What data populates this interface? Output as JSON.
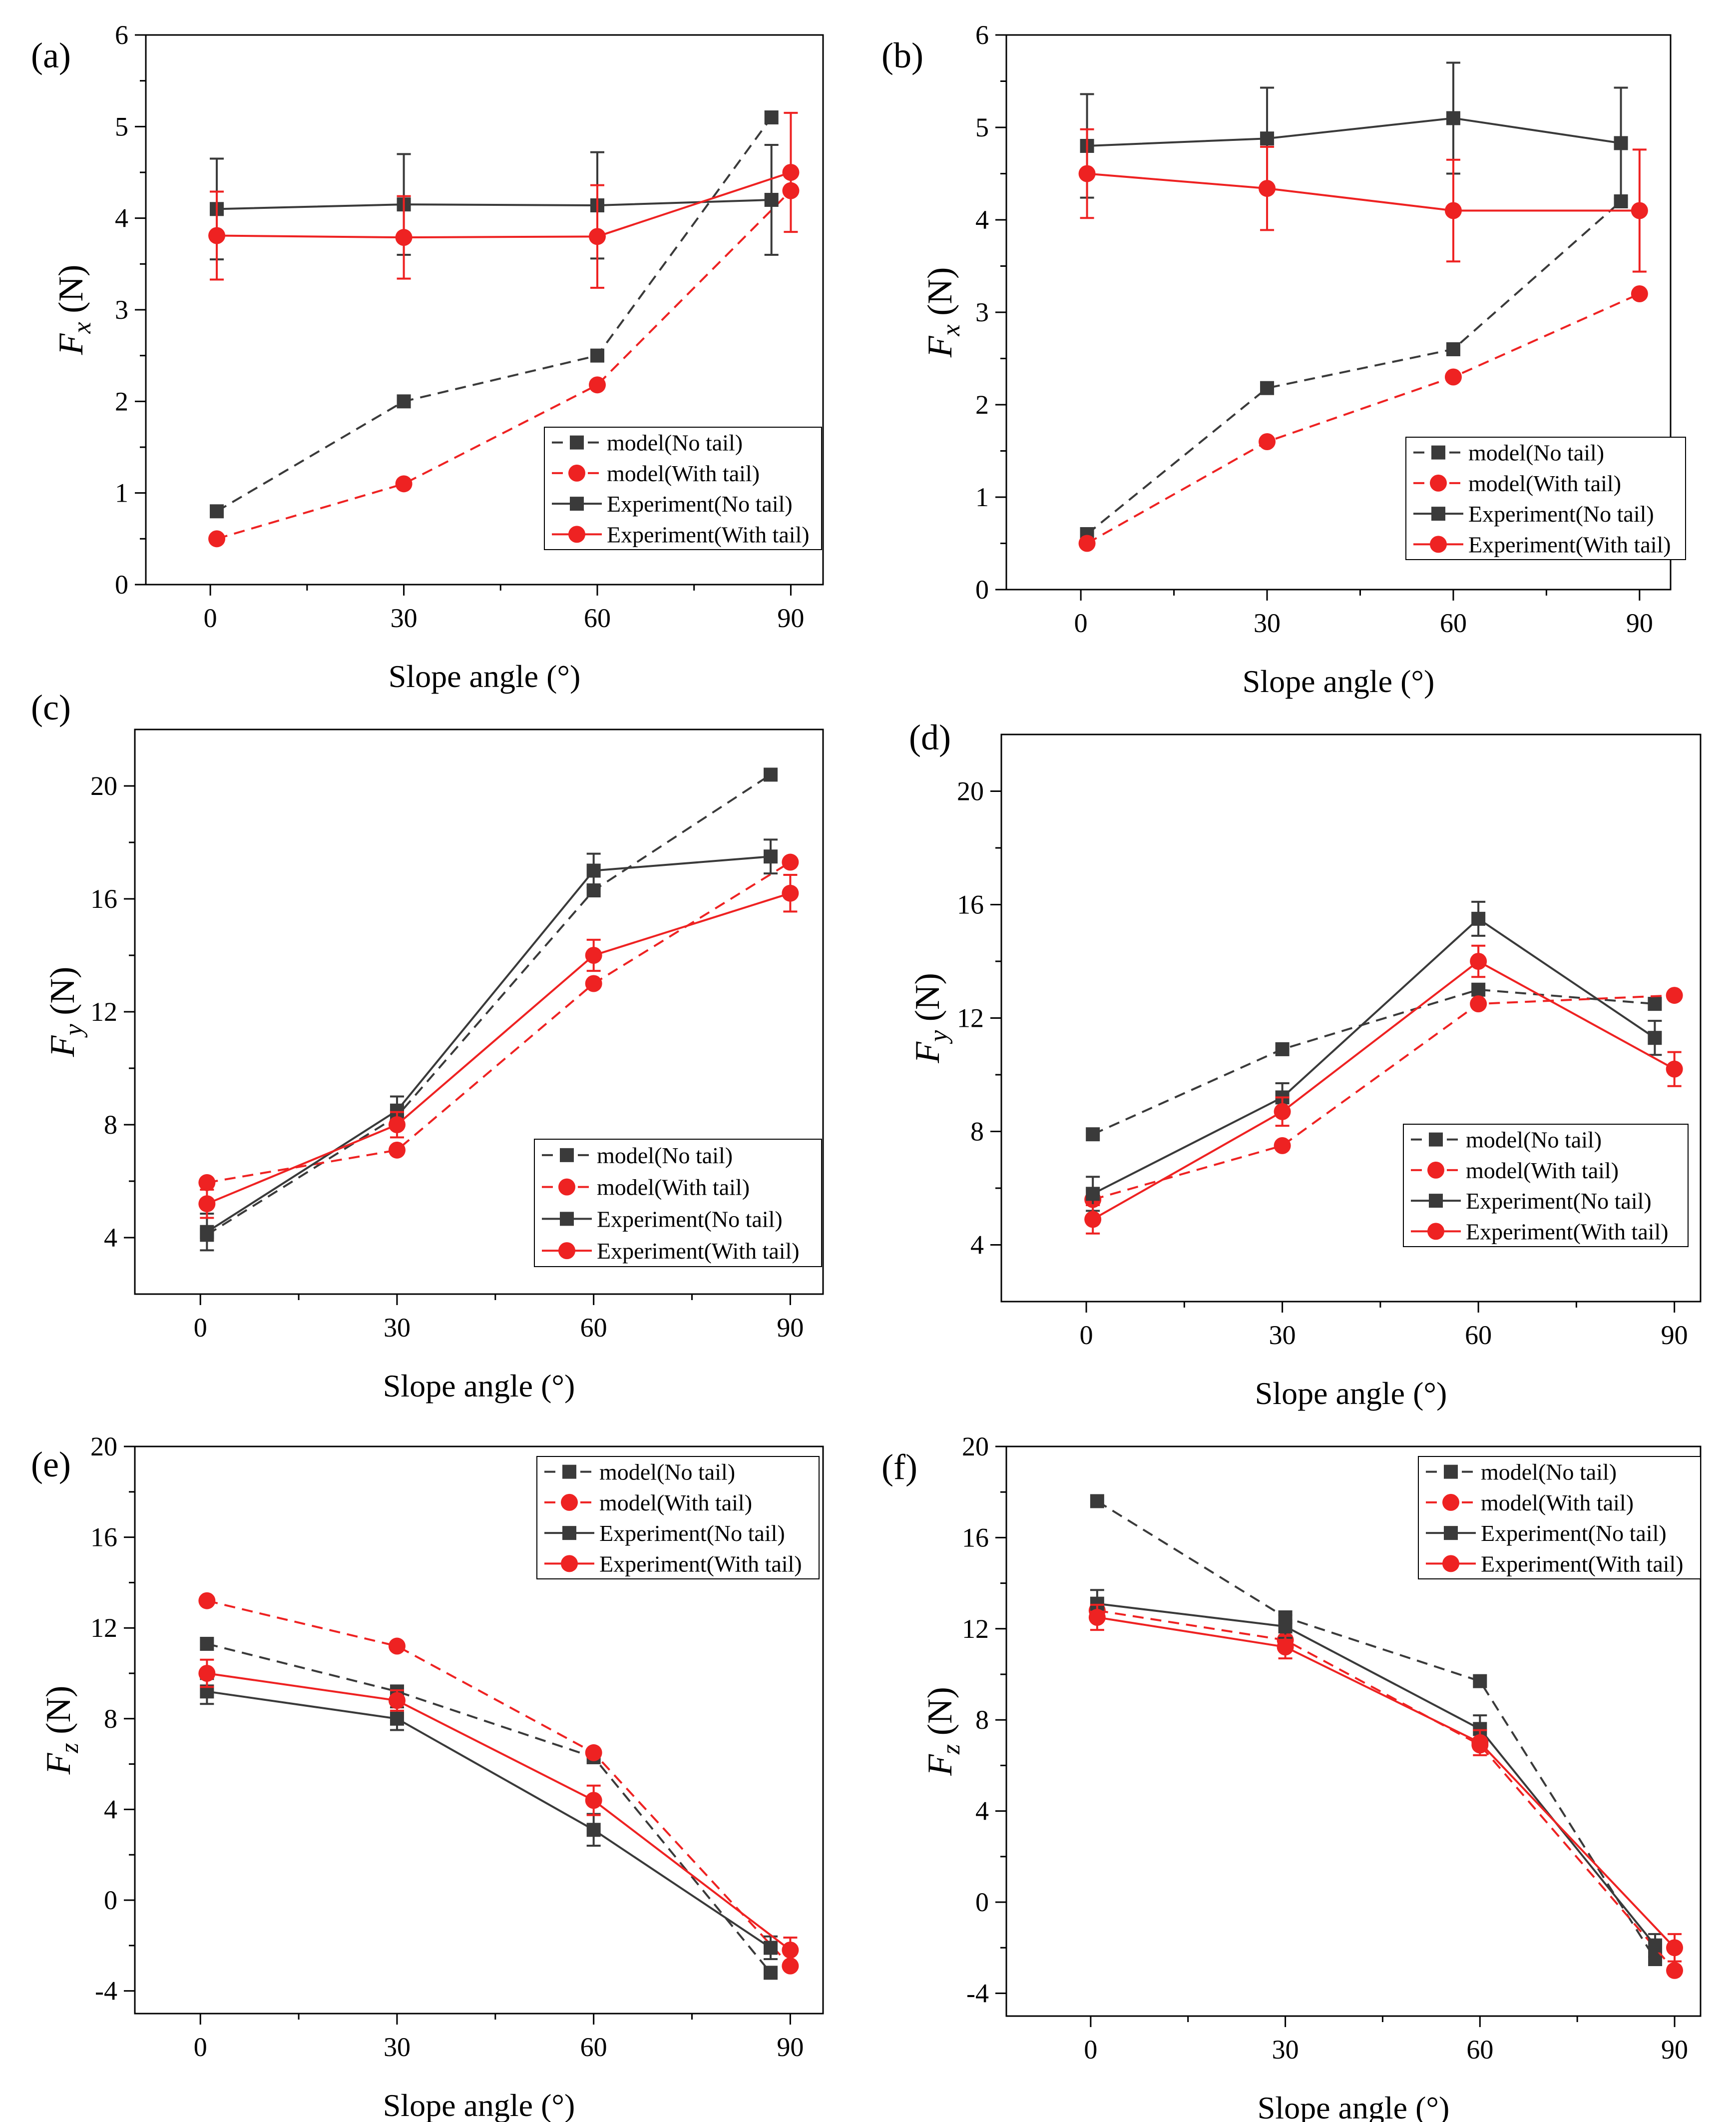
{
  "colors": {
    "no_tail": "#3a3a3a",
    "with_tail": "#ee2222",
    "axis": "#000000",
    "background": "#ffffff"
  },
  "legend_labels": [
    "model(No tail)",
    "model(With tail)",
    "Experiment(No tail)",
    "Experiment(With tail)"
  ],
  "chart_data": [
    {
      "panel": "(a)",
      "type": "line",
      "title": "",
      "xlabel": "Slope angle (°)",
      "ylabel_main": "F",
      "ylabel_sub": "x",
      "ylabel_unit": " (N)",
      "xlim": [
        -10,
        95
      ],
      "ylim": [
        0,
        6
      ],
      "xticks": [
        0,
        30,
        60,
        90
      ],
      "yticks": [
        0,
        1,
        2,
        3,
        4,
        5,
        6
      ],
      "legend_position": "lower-right",
      "series": [
        {
          "name": "model(No tail)",
          "kind": "model",
          "group": "no_tail",
          "marker": "square",
          "x": [
            1,
            30,
            60,
            87
          ],
          "y": [
            0.8,
            2.0,
            2.5,
            5.1
          ]
        },
        {
          "name": "model(With tail)",
          "kind": "model",
          "group": "with_tail",
          "marker": "circle",
          "x": [
            1,
            30,
            60,
            90
          ],
          "y": [
            0.5,
            1.1,
            2.18,
            4.3
          ]
        },
        {
          "name": "Experiment(No tail)",
          "kind": "experiment",
          "group": "no_tail",
          "marker": "square",
          "x": [
            1,
            30,
            60,
            87
          ],
          "y": [
            4.1,
            4.15,
            4.14,
            4.2
          ],
          "err": [
            0.55,
            0.55,
            0.58,
            0.6
          ]
        },
        {
          "name": "Experiment(With tail)",
          "kind": "experiment",
          "group": "with_tail",
          "marker": "circle",
          "x": [
            1,
            30,
            60,
            90
          ],
          "y": [
            3.81,
            3.79,
            3.8,
            4.5
          ],
          "err": [
            0.48,
            0.45,
            0.56,
            0.65
          ]
        }
      ]
    },
    {
      "panel": "(b)",
      "type": "line",
      "title": "",
      "xlabel": "Slope angle (°)",
      "ylabel_main": "F",
      "ylabel_sub": "x",
      "ylabel_unit": " (N)",
      "xlim": [
        -12,
        95
      ],
      "ylim": [
        0,
        6
      ],
      "xticks": [
        0,
        30,
        60,
        90
      ],
      "yticks": [
        0,
        1,
        2,
        3,
        4,
        5,
        6
      ],
      "legend_position": "lower-right",
      "series": [
        {
          "name": "model(No tail)",
          "kind": "model",
          "group": "no_tail",
          "marker": "square",
          "x": [
            1,
            30,
            60,
            87
          ],
          "y": [
            0.6,
            2.18,
            2.6,
            4.2
          ]
        },
        {
          "name": "model(With tail)",
          "kind": "model",
          "group": "with_tail",
          "marker": "circle",
          "x": [
            1,
            30,
            60,
            90
          ],
          "y": [
            0.5,
            1.6,
            2.3,
            3.2
          ]
        },
        {
          "name": "Experiment(No tail)",
          "kind": "experiment",
          "group": "no_tail",
          "marker": "square",
          "x": [
            1,
            30,
            60,
            87
          ],
          "y": [
            4.8,
            4.88,
            5.1,
            4.83
          ],
          "err": [
            0.56,
            0.55,
            0.6,
            0.6
          ]
        },
        {
          "name": "Experiment(With tail)",
          "kind": "experiment",
          "group": "with_tail",
          "marker": "circle",
          "x": [
            1,
            30,
            60,
            90
          ],
          "y": [
            4.5,
            4.34,
            4.1,
            4.1
          ],
          "err": [
            0.48,
            0.45,
            0.55,
            0.66
          ]
        }
      ]
    },
    {
      "panel": "(c)",
      "type": "line",
      "title": "",
      "xlabel": "Slope angle (°)",
      "ylabel_main": "F",
      "ylabel_sub": "y",
      "ylabel_unit": " (N)",
      "xlim": [
        -10,
        95
      ],
      "ylim": [
        2,
        22
      ],
      "xticks": [
        0,
        30,
        60,
        90
      ],
      "yticks": [
        4,
        8,
        12,
        16,
        20
      ],
      "legend_position": "lower-right",
      "series": [
        {
          "name": "model(No tail)",
          "kind": "model",
          "group": "no_tail",
          "marker": "square",
          "x": [
            1,
            30,
            60,
            87
          ],
          "y": [
            4.1,
            8.3,
            16.3,
            20.4
          ]
        },
        {
          "name": "model(With tail)",
          "kind": "model",
          "group": "with_tail",
          "marker": "circle",
          "x": [
            1,
            30,
            60,
            90
          ],
          "y": [
            5.95,
            7.1,
            13.0,
            17.3
          ]
        },
        {
          "name": "Experiment(No tail)",
          "kind": "experiment",
          "group": "no_tail",
          "marker": "square",
          "x": [
            1,
            30,
            60,
            87
          ],
          "y": [
            4.2,
            8.5,
            17.0,
            17.5
          ],
          "err": [
            0.65,
            0.5,
            0.6,
            0.6
          ]
        },
        {
          "name": "Experiment(With tail)",
          "kind": "experiment",
          "group": "with_tail",
          "marker": "circle",
          "x": [
            1,
            30,
            60,
            90
          ],
          "y": [
            5.2,
            8.0,
            14.0,
            16.2
          ],
          "err": [
            0.5,
            0.45,
            0.55,
            0.65
          ]
        }
      ]
    },
    {
      "panel": "(d)",
      "type": "line",
      "title": "",
      "xlabel": "Slope angle (°)",
      "ylabel_main": "F",
      "ylabel_sub": "y",
      "ylabel_unit": " (N)",
      "xlim": [
        -13,
        94
      ],
      "ylim": [
        2,
        22
      ],
      "xticks": [
        0,
        30,
        60,
        90
      ],
      "yticks": [
        4,
        8,
        12,
        16,
        20
      ],
      "legend_position": "lower-right",
      "series": [
        {
          "name": "model(No tail)",
          "kind": "model",
          "group": "no_tail",
          "marker": "square",
          "x": [
            1,
            30,
            60,
            87
          ],
          "y": [
            7.9,
            10.9,
            13.0,
            12.5
          ]
        },
        {
          "name": "model(With tail)",
          "kind": "model",
          "group": "with_tail",
          "marker": "circle",
          "x": [
            1,
            30,
            60,
            90
          ],
          "y": [
            5.6,
            7.5,
            12.5,
            12.8
          ]
        },
        {
          "name": "Experiment(No tail)",
          "kind": "experiment",
          "group": "no_tail",
          "marker": "square",
          "x": [
            1,
            30,
            60,
            87
          ],
          "y": [
            5.8,
            9.2,
            15.5,
            11.3
          ],
          "err": [
            0.6,
            0.5,
            0.6,
            0.6
          ]
        },
        {
          "name": "Experiment(With tail)",
          "kind": "experiment",
          "group": "with_tail",
          "marker": "circle",
          "x": [
            1,
            30,
            60,
            90
          ],
          "y": [
            4.9,
            8.7,
            14.0,
            10.2
          ],
          "err": [
            0.5,
            0.5,
            0.55,
            0.6
          ]
        }
      ]
    },
    {
      "panel": "(e)",
      "type": "line",
      "title": "",
      "xlabel": "Slope angle (°)",
      "ylabel_main": "F",
      "ylabel_sub": "z",
      "ylabel_unit": " (N)",
      "xlim": [
        -10,
        95
      ],
      "ylim": [
        -5,
        20
      ],
      "xticks": [
        0,
        30,
        60,
        90
      ],
      "yticks": [
        -4,
        0,
        4,
        8,
        12,
        16,
        20
      ],
      "legend_position": "top-right",
      "series": [
        {
          "name": "model(No tail)",
          "kind": "model",
          "group": "no_tail",
          "marker": "square",
          "x": [
            1,
            30,
            60,
            87
          ],
          "y": [
            11.3,
            9.2,
            6.3,
            -3.2
          ]
        },
        {
          "name": "model(With tail)",
          "kind": "model",
          "group": "with_tail",
          "marker": "circle",
          "x": [
            1,
            30,
            60,
            90
          ],
          "y": [
            13.2,
            11.2,
            6.5,
            -2.9
          ]
        },
        {
          "name": "Experiment(No tail)",
          "kind": "experiment",
          "group": "no_tail",
          "marker": "square",
          "x": [
            1,
            30,
            60,
            87
          ],
          "y": [
            9.2,
            8.0,
            3.1,
            -2.1
          ],
          "err": [
            0.55,
            0.5,
            0.7,
            0.5
          ]
        },
        {
          "name": "Experiment(With tail)",
          "kind": "experiment",
          "group": "with_tail",
          "marker": "circle",
          "x": [
            1,
            30,
            60,
            90
          ],
          "y": [
            10.0,
            8.8,
            4.4,
            -2.2
          ],
          "err": [
            0.6,
            0.45,
            0.65,
            0.55
          ]
        }
      ]
    },
    {
      "panel": "(f)",
      "type": "line",
      "title": "",
      "xlabel": "Slope angle (°)",
      "ylabel_main": "F",
      "ylabel_sub": "z",
      "ylabel_unit": " (N)",
      "xlim": [
        -13,
        94
      ],
      "ylim": [
        -5,
        20
      ],
      "xticks": [
        0,
        30,
        60,
        90
      ],
      "yticks": [
        -4,
        0,
        4,
        8,
        12,
        16,
        20
      ],
      "legend_position": "top-right",
      "series": [
        {
          "name": "model(No tail)",
          "kind": "model",
          "group": "no_tail",
          "marker": "square",
          "x": [
            1,
            30,
            60,
            87
          ],
          "y": [
            17.6,
            12.5,
            9.7,
            -2.5
          ]
        },
        {
          "name": "model(With tail)",
          "kind": "model",
          "group": "with_tail",
          "marker": "circle",
          "x": [
            1,
            30,
            60,
            90
          ],
          "y": [
            12.8,
            11.5,
            6.9,
            -3.0
          ]
        },
        {
          "name": "Experiment(No tail)",
          "kind": "experiment",
          "group": "no_tail",
          "marker": "square",
          "x": [
            1,
            30,
            60,
            87
          ],
          "y": [
            13.1,
            12.1,
            7.6,
            -1.9
          ],
          "err": [
            0.6,
            0.5,
            0.6,
            0.5
          ]
        },
        {
          "name": "Experiment(With tail)",
          "kind": "experiment",
          "group": "with_tail",
          "marker": "circle",
          "x": [
            1,
            30,
            60,
            90
          ],
          "y": [
            12.5,
            11.2,
            7.0,
            -2.0
          ],
          "err": [
            0.55,
            0.5,
            0.55,
            0.6
          ]
        }
      ]
    }
  ]
}
